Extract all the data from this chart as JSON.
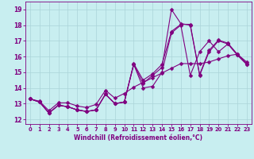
{
  "xlabel": "Windchill (Refroidissement éolien,°C)",
  "background_color": "#c8eef0",
  "grid_color": "#aad4d8",
  "line_color": "#800080",
  "xlim": [
    -0.5,
    23.5
  ],
  "ylim": [
    11.7,
    19.5
  ],
  "yticks": [
    12,
    13,
    14,
    15,
    16,
    17,
    18,
    19
  ],
  "xticks": [
    0,
    1,
    2,
    3,
    4,
    5,
    6,
    7,
    8,
    9,
    10,
    11,
    12,
    13,
    14,
    15,
    16,
    17,
    18,
    19,
    20,
    21,
    22,
    23
  ],
  "line1_x": [
    0,
    1,
    2,
    3,
    4,
    5,
    6,
    7,
    8,
    9,
    10,
    11,
    12,
    13,
    14,
    15,
    16,
    17,
    18,
    19,
    20,
    21,
    22,
    23
  ],
  "line1_y": [
    13.3,
    13.1,
    12.4,
    12.9,
    12.8,
    12.6,
    12.5,
    12.6,
    13.6,
    13.0,
    13.1,
    15.5,
    14.0,
    14.1,
    15.0,
    17.5,
    18.0,
    14.8,
    16.3,
    17.0,
    16.3,
    16.8,
    16.1,
    15.5
  ],
  "line2_x": [
    0,
    1,
    2,
    3,
    4,
    5,
    6,
    7,
    8,
    9,
    10,
    11,
    12,
    13,
    14,
    15,
    16,
    17,
    18,
    19,
    20,
    21,
    22,
    23
  ],
  "line2_y": [
    13.3,
    13.1,
    12.4,
    12.9,
    12.8,
    12.6,
    12.5,
    12.6,
    13.6,
    13.0,
    13.1,
    15.5,
    14.3,
    14.8,
    15.3,
    19.0,
    18.1,
    18.0,
    14.8,
    16.3,
    17.0,
    16.8,
    16.1,
    15.5
  ],
  "line3_x": [
    0,
    1,
    2,
    3,
    4,
    5,
    6,
    7,
    8,
    9,
    10,
    11,
    12,
    13,
    14,
    15,
    16,
    17,
    18,
    19,
    20,
    21,
    22,
    23
  ],
  "line3_y": [
    13.3,
    13.1,
    12.4,
    12.9,
    12.8,
    12.6,
    12.5,
    12.6,
    13.6,
    13.0,
    13.1,
    15.55,
    14.5,
    14.9,
    15.5,
    17.6,
    18.05,
    18.05,
    14.85,
    16.4,
    17.05,
    16.85,
    16.15,
    15.55
  ],
  "line4_x": [
    0,
    1,
    2,
    3,
    4,
    5,
    6,
    7,
    8,
    9,
    10,
    11,
    12,
    13,
    14,
    15,
    16,
    17,
    18,
    19,
    20,
    21,
    22,
    23
  ],
  "line4_y": [
    13.3,
    13.15,
    12.55,
    13.05,
    13.05,
    12.85,
    12.75,
    12.95,
    13.85,
    13.35,
    13.65,
    14.05,
    14.35,
    14.65,
    14.95,
    15.25,
    15.55,
    15.55,
    15.55,
    15.65,
    15.85,
    16.05,
    16.15,
    15.65
  ]
}
